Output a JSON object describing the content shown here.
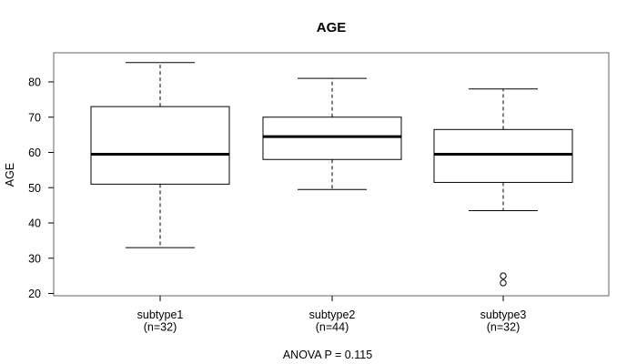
{
  "title": "AGE",
  "footer": "ANOVA P = 0.115",
  "chart_data": {
    "type": "boxplot",
    "title": "AGE",
    "xlabel": "",
    "ylabel": "AGE",
    "annotation": "ANOVA P = 0.115",
    "yticks": [
      20,
      30,
      40,
      50,
      60,
      70,
      80
    ],
    "ylim": [
      19.3,
      88.2
    ],
    "grid": false,
    "whisker_style": "dashed",
    "frame_color": "#666666",
    "box_color": "#000000",
    "fill_color": "#ffffff",
    "groups": [
      {
        "label": "subtype1",
        "sublabel": "(n=32)",
        "n": 32,
        "whisker_low": 33,
        "q1": 51,
        "median": 59.5,
        "q3": 73,
        "whisker_high": 85.5,
        "outliers": []
      },
      {
        "label": "subtype2",
        "sublabel": "(n=44)",
        "n": 44,
        "whisker_low": 49.5,
        "q1": 58,
        "median": 64.5,
        "q3": 70,
        "whisker_high": 81,
        "outliers": []
      },
      {
        "label": "subtype3",
        "sublabel": "(n=32)",
        "n": 32,
        "whisker_low": 43.5,
        "q1": 51.5,
        "median": 59.5,
        "q3": 66.5,
        "whisker_high": 78,
        "outliers": [
          25,
          23
        ]
      }
    ]
  }
}
